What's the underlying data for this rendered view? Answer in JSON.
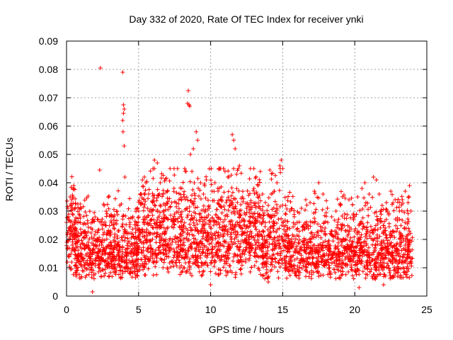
{
  "chart_data": {
    "type": "scatter",
    "title": "Day 332 of 2020, Rate Of TEC Index for receiver ynki",
    "xlabel": "GPS time / hours",
    "ylabel": "ROTI / TECUs",
    "xlim": [
      0,
      25
    ],
    "ylim": [
      0,
      0.09
    ],
    "xticks": [
      "0",
      "5",
      "10",
      "15",
      "20",
      "25"
    ],
    "yticks": [
      "0",
      "0.01",
      "0.02",
      "0.03",
      "0.04",
      "0.05",
      "0.06",
      "0.07",
      "0.08",
      "0.09"
    ],
    "grid": true,
    "marker": "+",
    "color": "#ff0000",
    "points": [
      [
        0.05,
        0.012
      ],
      [
        0.1,
        0.031
      ],
      [
        0.15,
        0.028
      ],
      [
        0.2,
        0.024
      ],
      [
        0.25,
        0.035
      ],
      [
        0.3,
        0.022
      ],
      [
        0.35,
        0.034
      ],
      [
        0.4,
        0.018
      ],
      [
        0.45,
        0.035
      ],
      [
        0.5,
        0.039
      ],
      [
        0.55,
        0.021
      ],
      [
        0.6,
        0.016
      ],
      [
        0.8,
        0.021
      ],
      [
        1.0,
        0.014
      ],
      [
        1.3,
        0.022
      ],
      [
        1.5,
        0.019
      ],
      [
        1.7,
        0.024
      ],
      [
        1.8,
        0.0015
      ],
      [
        2.0,
        0.018
      ],
      [
        2.2,
        0.027
      ],
      [
        2.3,
        0.0445
      ],
      [
        2.35,
        0.0805
      ],
      [
        2.5,
        0.02
      ],
      [
        2.7,
        0.025
      ],
      [
        2.9,
        0.022
      ],
      [
        3.1,
        0.028
      ],
      [
        3.3,
        0.024
      ],
      [
        3.5,
        0.03
      ],
      [
        3.7,
        0.032
      ],
      [
        3.8,
        0.0325
      ],
      [
        3.9,
        0.079
      ],
      [
        3.95,
        0.0675
      ],
      [
        4.0,
        0.066
      ],
      [
        3.95,
        0.0645
      ],
      [
        3.9,
        0.062
      ],
      [
        3.92,
        0.058
      ],
      [
        4.0,
        0.053
      ],
      [
        4.05,
        0.042
      ],
      [
        4.2,
        0.022
      ],
      [
        4.4,
        0.026
      ],
      [
        4.6,
        0.028
      ],
      [
        4.8,
        0.024
      ],
      [
        5.0,
        0.03
      ],
      [
        5.2,
        0.036
      ],
      [
        5.4,
        0.042
      ],
      [
        5.5,
        0.04
      ],
      [
        5.7,
        0.036
      ],
      [
        6.0,
        0.045
      ],
      [
        6.1,
        0.048
      ],
      [
        6.3,
        0.047
      ],
      [
        6.5,
        0.04
      ],
      [
        6.7,
        0.036
      ],
      [
        7.0,
        0.037
      ],
      [
        7.3,
        0.033
      ],
      [
        7.5,
        0.029
      ],
      [
        7.8,
        0.034
      ],
      [
        8.0,
        0.038
      ],
      [
        8.2,
        0.045
      ],
      [
        8.3,
        0.044
      ],
      [
        8.4,
        0.068
      ],
      [
        8.45,
        0.0725
      ],
      [
        8.5,
        0.0675
      ],
      [
        8.55,
        0.067
      ],
      [
        8.6,
        0.05
      ],
      [
        8.7,
        0.044
      ],
      [
        8.8,
        0.052
      ],
      [
        9.0,
        0.058
      ],
      [
        9.1,
        0.055
      ],
      [
        9.3,
        0.04
      ],
      [
        9.5,
        0.036
      ],
      [
        9.7,
        0.041
      ],
      [
        9.9,
        0.031
      ],
      [
        10.1,
        0.037
      ],
      [
        10.3,
        0.04
      ],
      [
        10.5,
        0.038
      ],
      [
        10.7,
        0.045
      ],
      [
        11.0,
        0.044
      ],
      [
        11.2,
        0.042
      ],
      [
        11.5,
        0.057
      ],
      [
        11.6,
        0.055
      ],
      [
        11.7,
        0.052
      ],
      [
        11.8,
        0.043
      ],
      [
        12.0,
        0.046
      ],
      [
        12.2,
        0.035
      ],
      [
        12.5,
        0.031
      ],
      [
        12.8,
        0.033
      ],
      [
        13.0,
        0.038
      ],
      [
        13.3,
        0.039
      ],
      [
        13.6,
        0.036
      ],
      [
        13.8,
        0.033
      ],
      [
        14.0,
        0.032
      ],
      [
        14.2,
        0.036
      ],
      [
        14.4,
        0.037
      ],
      [
        14.6,
        0.04
      ],
      [
        14.8,
        0.046
      ],
      [
        14.9,
        0.048
      ],
      [
        15.0,
        0.045
      ],
      [
        15.2,
        0.032
      ],
      [
        15.5,
        0.03
      ],
      [
        15.8,
        0.028
      ],
      [
        16.0,
        0.026
      ],
      [
        16.3,
        0.031
      ],
      [
        16.6,
        0.034
      ],
      [
        16.9,
        0.033
      ],
      [
        17.2,
        0.037
      ],
      [
        17.5,
        0.04
      ],
      [
        17.8,
        0.036
      ],
      [
        18.1,
        0.031
      ],
      [
        18.4,
        0.028
      ],
      [
        18.7,
        0.03
      ],
      [
        19.0,
        0.032
      ],
      [
        19.3,
        0.029
      ],
      [
        19.6,
        0.034
      ],
      [
        19.9,
        0.029
      ],
      [
        20.2,
        0.035
      ],
      [
        20.5,
        0.038
      ],
      [
        20.7,
        0.04
      ],
      [
        21.0,
        0.036
      ],
      [
        21.3,
        0.042
      ],
      [
        21.5,
        0.041
      ],
      [
        21.7,
        0.036
      ],
      [
        21.9,
        0.032
      ],
      [
        22.2,
        0.033
      ],
      [
        22.5,
        0.037
      ],
      [
        22.8,
        0.034
      ],
      [
        23.1,
        0.03
      ],
      [
        23.3,
        0.034
      ],
      [
        23.5,
        0.037
      ],
      [
        23.7,
        0.033
      ],
      [
        23.8,
        0.039
      ],
      [
        23.9,
        0.03
      ],
      [
        20.3,
        0.003
      ],
      [
        22.0,
        0.004
      ],
      [
        10.0,
        0.004
      ],
      [
        14.0,
        0.005
      ]
    ]
  }
}
